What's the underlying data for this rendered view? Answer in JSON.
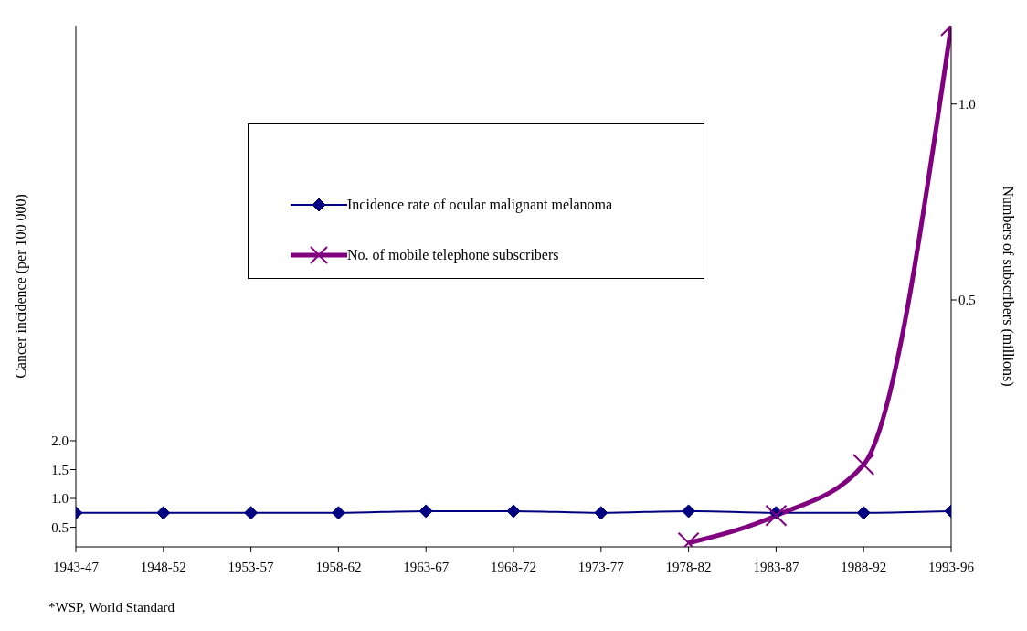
{
  "chart_data": {
    "type": "line",
    "categories": [
      "1943-47",
      "1948-52",
      "1953-57",
      "1958-62",
      "1963-67",
      "1968-72",
      "1973-77",
      "1978-82",
      "1983-87",
      "1988-92",
      "1993-96"
    ],
    "ylabel": "Cancer incidence (per 100 000)",
    "y2label": "Numbers of subscribers (millions)",
    "series": [
      {
        "name": "Incidence rate of ocular malignant melanoma",
        "color": "#000080",
        "marker": "diamond",
        "values": [
          0.75,
          0.75,
          0.75,
          0.75,
          0.78,
          0.78,
          0.75,
          0.78,
          0.75,
          0.75,
          0.78
        ]
      },
      {
        "name": "No. of mobile telephone subscribers",
        "color": "#800080",
        "marker": "cross",
        "axis": "y2",
        "values": [
          null,
          null,
          null,
          null,
          null,
          null,
          null,
          -0.12,
          -0.05,
          0.08,
          1.2
        ]
      }
    ],
    "ylim": [
      0.16,
      9.2
    ],
    "yticks": [
      0.5,
      {
        "value": 1,
        "label": "1.0"
      },
      1.5,
      {
        "value": 2,
        "label": "2.0"
      }
    ],
    "y2lim": [
      -0.13,
      1.2
    ],
    "y2ticks": [
      0.5,
      {
        "value": 1,
        "label": "1.0"
      }
    ],
    "grid": false,
    "legend": "top",
    "annotations": [
      "*WSP, World Standard"
    ]
  }
}
